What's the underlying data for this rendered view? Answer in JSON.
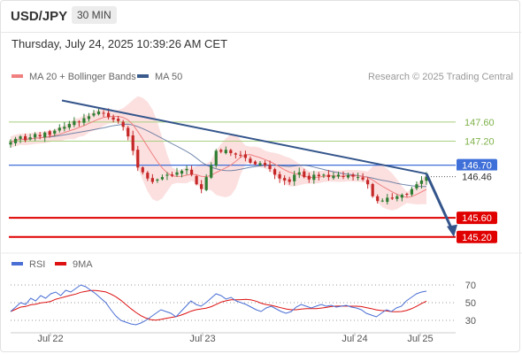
{
  "header": {
    "symbol": "USD/JPY",
    "timeframe": "30 MIN",
    "datetime": "Thursday, July 24, 2025 10:39:26 AM CET"
  },
  "legend": {
    "ma20_label": "MA 20 + Bollinger Bands",
    "ma50_label": "MA 50",
    "copyright": "Research © 2025 Trading Central",
    "rsi_label": "RSI",
    "ma9_label": "9MA"
  },
  "colors": {
    "candle_up": "#2e7d32",
    "candle_down": "#c62828",
    "ma20": "#f08080",
    "bollinger_fill": "#fbd5d5",
    "ma50": "#3a5a8c",
    "trendline": "#34558b",
    "resistance": "#a8cf7e",
    "support": "#e00000",
    "pivot": "#3f6fd8",
    "rsi": "#4a6fd4",
    "rsi_ma": "#dd1111"
  },
  "chart_data": [
    {
      "type": "candlestick",
      "x_ticks": [
        "Jul 22",
        "Jul 23",
        "Jul 24",
        "Jul 25"
      ],
      "ylim": [
        144.9,
        148.3
      ],
      "levels": [
        {
          "value": 147.6,
          "label": "147.60",
          "kind": "resistance"
        },
        {
          "value": 147.2,
          "label": "147.20",
          "kind": "resistance"
        },
        {
          "value": 146.7,
          "label": "146.70",
          "kind": "pivot"
        },
        {
          "value": 145.6,
          "label": "145.60",
          "kind": "support"
        },
        {
          "value": 145.2,
          "label": "145.20",
          "kind": "support"
        }
      ],
      "last_price": {
        "value": 146.46,
        "label": "146.46"
      },
      "close_path": [
        147.18,
        147.25,
        147.3,
        147.22,
        147.28,
        147.35,
        147.3,
        147.38,
        147.33,
        147.42,
        147.48,
        147.5,
        147.56,
        147.62,
        147.6,
        147.68,
        147.72,
        147.78,
        147.82,
        147.78,
        147.7,
        147.65,
        147.62,
        147.5,
        147.3,
        147.0,
        146.65,
        146.55,
        146.42,
        146.35,
        146.4,
        146.45,
        146.5,
        146.48,
        146.55,
        146.58,
        146.62,
        146.5,
        146.3,
        146.2,
        146.45,
        146.7,
        147.0,
        146.98,
        147.02,
        146.95,
        146.92,
        146.9,
        146.85,
        146.75,
        146.72,
        146.74,
        146.7,
        146.62,
        146.5,
        146.42,
        146.38,
        146.35,
        146.5,
        146.55,
        146.45,
        146.4,
        146.5,
        146.47,
        146.5,
        146.45,
        146.48,
        146.5,
        146.47,
        146.49,
        146.46,
        146.45,
        146.4,
        146.3,
        146.05,
        145.95,
        145.96,
        146.02,
        146.0,
        146.05,
        146.08,
        146.1,
        146.2,
        146.3,
        146.38,
        146.46
      ],
      "trendline": {
        "from": {
          "x": "Jul 22",
          "y": 148.05
        },
        "to": {
          "x": "Jul 25",
          "y": 146.52
        }
      },
      "projection": {
        "from": 146.52,
        "to": 145.2
      }
    },
    {
      "type": "line",
      "name": "RSI panel",
      "series": [
        {
          "name": "RSI"
        },
        {
          "name": "9MA"
        }
      ],
      "yticks": [
        70,
        50,
        30
      ],
      "ylim": [
        20,
        80
      ],
      "rsi_path": [
        40,
        45,
        50,
        48,
        55,
        52,
        58,
        55,
        60,
        62,
        58,
        64,
        62,
        66,
        70,
        68,
        64,
        60,
        55,
        50,
        42,
        35,
        30,
        28,
        26,
        25,
        27,
        30,
        34,
        38,
        42,
        40,
        38,
        34,
        40,
        46,
        52,
        48,
        46,
        50,
        55,
        60,
        58,
        54,
        56,
        52,
        50,
        48,
        45,
        42,
        40,
        44,
        46,
        43,
        40,
        38,
        40,
        45,
        48,
        46,
        44,
        46,
        48,
        46,
        47,
        45,
        46,
        47,
        45,
        44,
        42,
        38,
        36,
        34,
        38,
        42,
        40,
        44,
        46,
        52,
        56,
        60,
        62,
        63
      ]
    }
  ]
}
